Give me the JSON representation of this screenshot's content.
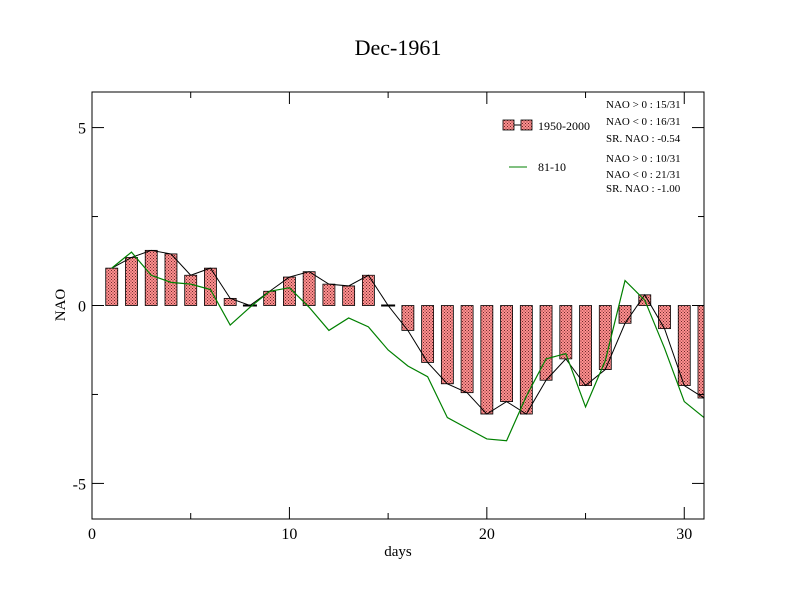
{
  "chart_data": {
    "type": "bar",
    "title": "Dec-1961",
    "xlabel": "days",
    "ylabel": "NAO",
    "xlim": [
      0,
      31
    ],
    "ylim": [
      -6,
      6
    ],
    "x_ticks": [
      0,
      10,
      20,
      30
    ],
    "y_ticks": [
      5,
      0,
      -5
    ],
    "grid": false,
    "legend_position": "top-right",
    "days": [
      1,
      2,
      3,
      4,
      5,
      6,
      7,
      8,
      9,
      10,
      11,
      12,
      13,
      14,
      15,
      16,
      17,
      18,
      19,
      20,
      21,
      22,
      23,
      24,
      25,
      26,
      27,
      28,
      29,
      30,
      31
    ],
    "series": [
      {
        "name": "1950-2000",
        "kind": "bar+line",
        "color": "#ff8080",
        "values": [
          1.05,
          1.35,
          1.55,
          1.45,
          0.85,
          1.05,
          0.2,
          0.0,
          0.4,
          0.8,
          0.95,
          0.6,
          0.55,
          0.85,
          0.0,
          -0.7,
          -1.6,
          -2.2,
          -2.45,
          -3.05,
          -2.7,
          -3.05,
          -2.1,
          -1.5,
          -2.25,
          -1.8,
          -0.5,
          0.3,
          -0.65,
          -2.25,
          -2.6
        ]
      },
      {
        "name": "81-10",
        "kind": "line",
        "color": "#008000",
        "values": [
          1.05,
          1.5,
          0.85,
          0.65,
          0.6,
          0.45,
          -0.55,
          -0.05,
          0.4,
          0.5,
          -0.05,
          -0.7,
          -0.35,
          -0.6,
          -1.25,
          -1.7,
          -2.0,
          -3.15,
          -3.45,
          -3.75,
          -3.8,
          -2.55,
          -1.5,
          -1.35,
          -2.85,
          -1.55,
          0.7,
          0.15,
          -1.2,
          -2.7,
          -3.15
        ]
      }
    ],
    "stats": [
      {
        "line1": "NAO > 0 :  15/31",
        "line2": "NAO < 0 :  16/31",
        "line3": "SR. NAO :  -0.54"
      },
      {
        "line1": "NAO > 0 :  10/31",
        "line2": "NAO < 0 :  21/31",
        "line3": "SR. NAO :  -1.00"
      }
    ],
    "legend_labels": [
      "1950-2000",
      "81-10"
    ]
  }
}
